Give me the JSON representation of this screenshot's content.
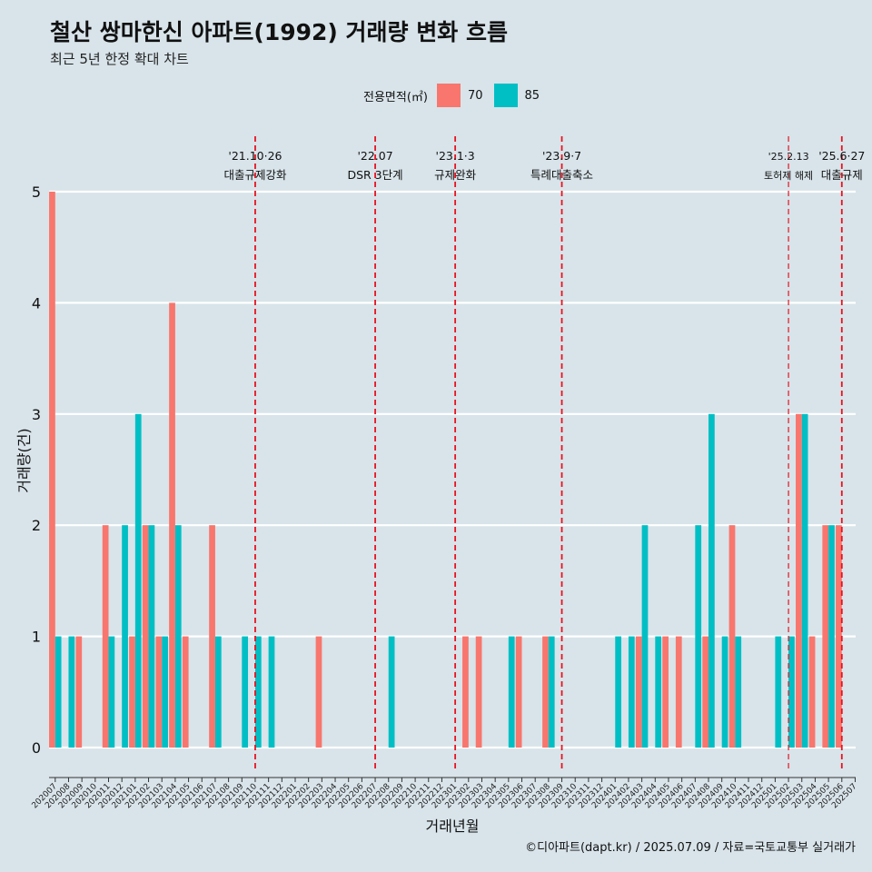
{
  "chart_data": {
    "type": "bar",
    "title": "철산 쌍마한신 아파트(1992) 거래량 변화 흐름",
    "subtitle": "최근 5년 한정 확대 차트",
    "xlabel": "거래년월",
    "ylabel": "거래량(건)",
    "ylim": [
      0,
      5
    ],
    "yticks": [
      0,
      1,
      2,
      3,
      4,
      5
    ],
    "legend_title": "전용면적(㎡)",
    "series_colors": {
      "70": "#f8766d",
      "85": "#00bfc4"
    },
    "categories": [
      "202007",
      "202008",
      "202009",
      "202010",
      "202011",
      "202012",
      "202101",
      "202102",
      "202103",
      "202104",
      "202105",
      "202106",
      "202107",
      "202108",
      "202109",
      "202110",
      "202111",
      "202112",
      "202201",
      "202202",
      "202203",
      "202204",
      "202205",
      "202206",
      "202207",
      "202208",
      "202209",
      "202210",
      "202211",
      "202212",
      "202301",
      "202302",
      "202303",
      "202304",
      "202305",
      "202306",
      "202307",
      "202308",
      "202309",
      "202310",
      "202311",
      "202312",
      "202401",
      "202402",
      "202403",
      "202404",
      "202405",
      "202406",
      "202407",
      "202408",
      "202409",
      "202410",
      "202411",
      "202412",
      "202501",
      "202502",
      "202503",
      "202504",
      "202505",
      "202506",
      "202507"
    ],
    "series": [
      {
        "name": "70",
        "values": [
          5,
          0,
          1,
          0,
          2,
          0,
          1,
          2,
          1,
          4,
          1,
          0,
          2,
          0,
          0,
          0,
          0,
          0,
          0,
          0,
          1,
          0,
          0,
          0,
          0,
          0,
          0,
          0,
          0,
          0,
          0,
          1,
          1,
          0,
          0,
          1,
          0,
          1,
          0,
          0,
          0,
          0,
          0,
          0,
          1,
          0,
          1,
          1,
          0,
          1,
          0,
          2,
          0,
          0,
          0,
          0,
          3,
          1,
          2,
          2,
          0
        ]
      },
      {
        "name": "85",
        "values": [
          1,
          1,
          0,
          0,
          1,
          2,
          3,
          2,
          1,
          2,
          0,
          0,
          1,
          0,
          1,
          1,
          1,
          0,
          0,
          0,
          0,
          0,
          0,
          0,
          0,
          1,
          0,
          0,
          0,
          0,
          0,
          0,
          0,
          0,
          1,
          0,
          0,
          1,
          0,
          0,
          0,
          0,
          1,
          1,
          2,
          1,
          0,
          0,
          2,
          3,
          1,
          1,
          0,
          0,
          1,
          1,
          3,
          0,
          2,
          0,
          0
        ]
      }
    ],
    "events": [
      {
        "month": "202110",
        "date": "'21.10·26",
        "label": "대출규제강화",
        "style": "major"
      },
      {
        "month": "202207",
        "date": "'22.07",
        "label": "DSR 3단계",
        "style": "major"
      },
      {
        "month": "202301",
        "date": "'23.1·3",
        "label": "규제완화",
        "style": "major"
      },
      {
        "month": "202309",
        "date": "'23.9·7",
        "label": "특례대출축소",
        "style": "major"
      },
      {
        "month": "202502",
        "date": "'25.2.13",
        "label": "토허제 해제",
        "style": "minor"
      },
      {
        "month": "202506",
        "date": "'25.6·27",
        "label": "대출규제",
        "style": "major"
      }
    ]
  },
  "caption": "©디아파트(dapt.kr) / 2025.07.09 / 자료=국토교통부 실거래가"
}
